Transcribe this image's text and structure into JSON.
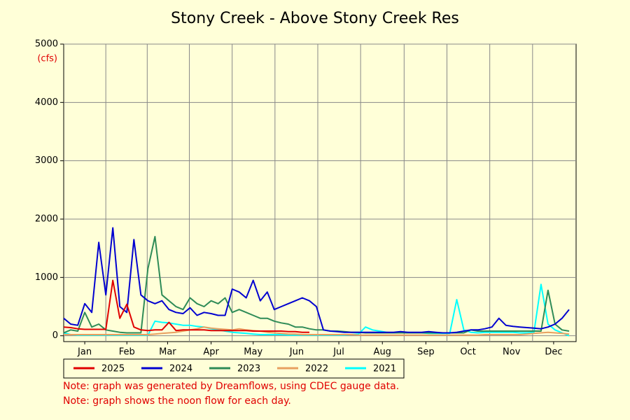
{
  "chart_data": {
    "type": "line",
    "title": "Stony Creek - Above Stony Creek Res",
    "y_unit": "(cfs)",
    "x": [
      1,
      6,
      11,
      16,
      21,
      26,
      31,
      36,
      41,
      46,
      51,
      56,
      61,
      66,
      71,
      76,
      81,
      86,
      91,
      96,
      101,
      106,
      111,
      116,
      121,
      126,
      131,
      136,
      141,
      146,
      151,
      156,
      161,
      166,
      171,
      176,
      181,
      186,
      191,
      196,
      201,
      206,
      211,
      216,
      221,
      226,
      231,
      236,
      241,
      246,
      251,
      256,
      261,
      266,
      271,
      276,
      281,
      286,
      291,
      296,
      301,
      306,
      311,
      316,
      321,
      326,
      331,
      336,
      341,
      346,
      351,
      356,
      361
    ],
    "xlim": [
      1,
      366
    ],
    "xticks": [
      {
        "value": 16,
        "label": "Jan"
      },
      {
        "value": 46,
        "label": "Feb"
      },
      {
        "value": 75,
        "label": "Mar"
      },
      {
        "value": 106,
        "label": "Apr"
      },
      {
        "value": 136,
        "label": "May"
      },
      {
        "value": 167,
        "label": "Jun"
      },
      {
        "value": 197,
        "label": "Jul"
      },
      {
        "value": 228,
        "label": "Aug"
      },
      {
        "value": 259,
        "label": "Sep"
      },
      {
        "value": 289,
        "label": "Oct"
      },
      {
        "value": 320,
        "label": "Nov"
      },
      {
        "value": 350,
        "label": "Dec"
      }
    ],
    "ylim": [
      -100,
      5000
    ],
    "yticks": [
      0,
      1000,
      2000,
      3000,
      4000,
      5000
    ],
    "grid": true,
    "series": [
      {
        "name": "2025",
        "color": "#e00000",
        "values": [
          150,
          140,
          120,
          110,
          110,
          110,
          110,
          950,
          300,
          540,
          150,
          100,
          90,
          100,
          100,
          230,
          90,
          100,
          100,
          100,
          100,
          90,
          90,
          90,
          90,
          90,
          90,
          80,
          80,
          80,
          80,
          80,
          70,
          70,
          60,
          60,
          null,
          null,
          null,
          null,
          null,
          null,
          null,
          null,
          null,
          null,
          null,
          null,
          null,
          null,
          null,
          null,
          null,
          null,
          null,
          null,
          null,
          null,
          null,
          null,
          null,
          null,
          null,
          null,
          null,
          null,
          null,
          null,
          null,
          null,
          null,
          null,
          null
        ]
      },
      {
        "name": "2024",
        "color": "#0000d0",
        "values": [
          300,
          200,
          180,
          550,
          400,
          1600,
          700,
          1850,
          500,
          400,
          1650,
          700,
          600,
          550,
          600,
          450,
          400,
          380,
          480,
          350,
          400,
          380,
          350,
          350,
          800,
          750,
          650,
          950,
          600,
          750,
          450,
          500,
          550,
          600,
          650,
          600,
          500,
          100,
          80,
          70,
          60,
          60,
          60,
          60,
          60,
          60,
          60,
          60,
          70,
          60,
          60,
          60,
          70,
          60,
          50,
          50,
          60,
          80,
          100,
          100,
          120,
          150,
          300,
          180,
          160,
          150,
          140,
          130,
          120,
          150,
          200,
          300,
          450
        ]
      },
      {
        "name": "2023",
        "color": "#2e8b57",
        "values": [
          50,
          100,
          80,
          400,
          150,
          200,
          100,
          80,
          60,
          50,
          50,
          50,
          1150,
          1700,
          700,
          600,
          500,
          450,
          650,
          550,
          500,
          600,
          550,
          650,
          400,
          450,
          400,
          350,
          300,
          300,
          250,
          220,
          200,
          150,
          150,
          120,
          100,
          100,
          80,
          80,
          70,
          60,
          60,
          50,
          50,
          50,
          50,
          50,
          50,
          50,
          50,
          50,
          50,
          50,
          50,
          50,
          50,
          50,
          100,
          80,
          80,
          80,
          80,
          80,
          80,
          80,
          80,
          80,
          80,
          780,
          200,
          100,
          80
        ]
      },
      {
        "name": "2022",
        "color": "#e8a060",
        "values": [
          20,
          20,
          20,
          20,
          20,
          20,
          20,
          20,
          20,
          20,
          20,
          20,
          20,
          30,
          40,
          50,
          60,
          80,
          100,
          120,
          150,
          130,
          120,
          110,
          100,
          120,
          100,
          90,
          80,
          60,
          50,
          40,
          30,
          30,
          20,
          20,
          20,
          20,
          20,
          20,
          20,
          20,
          10,
          10,
          10,
          10,
          10,
          10,
          10,
          10,
          10,
          10,
          10,
          10,
          10,
          10,
          10,
          10,
          10,
          10,
          20,
          20,
          20,
          20,
          20,
          20,
          30,
          40,
          50,
          60,
          50,
          40,
          30
        ]
      },
      {
        "name": "2021",
        "color": "#00ffff",
        "values": [
          50,
          20,
          10,
          10,
          10,
          10,
          10,
          10,
          10,
          10,
          10,
          10,
          10,
          250,
          230,
          220,
          200,
          180,
          180,
          160,
          150,
          120,
          100,
          80,
          60,
          50,
          40,
          30,
          20,
          20,
          20,
          20,
          10,
          10,
          10,
          10,
          10,
          10,
          10,
          10,
          10,
          20,
          30,
          150,
          100,
          80,
          60,
          50,
          50,
          60,
          50,
          50,
          40,
          40,
          40,
          40,
          620,
          100,
          60,
          50,
          60,
          60,
          60,
          60,
          60,
          50,
          50,
          60,
          880,
          200,
          100,
          50,
          0
        ]
      }
    ],
    "notes": [
      "Note: graph was generated by Dreamflows, using CDEC gauge data.",
      "Note: graph shows the noon flow for each day."
    ]
  }
}
